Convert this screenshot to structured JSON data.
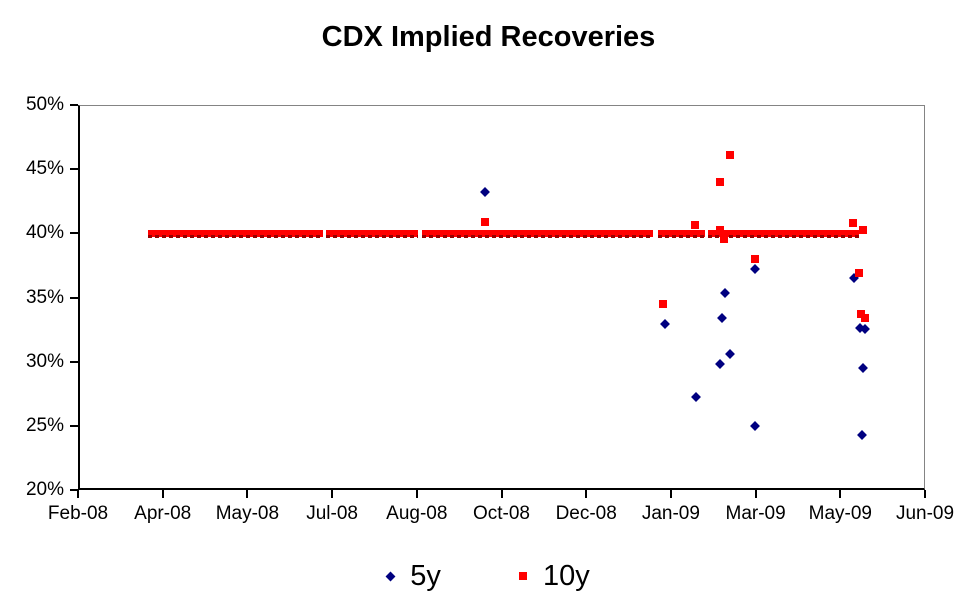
{
  "title": "CDX Implied Recoveries",
  "colors": {
    "series_5y": "#000080",
    "series_10y": "#FF0000",
    "band_dark_fleck": "#990000",
    "plot_border_gray": "#848484",
    "axis_black": "#000000",
    "background": "#FFFFFF"
  },
  "chart_data": {
    "type": "scatter",
    "title": "CDX Implied Recoveries",
    "grid": "off",
    "legend_position": "bottom-center",
    "x_axis": {
      "tick_labels": [
        "Feb-08",
        "Apr-08",
        "May-08",
        "Jul-08",
        "Aug-08",
        "Oct-08",
        "Dec-08",
        "Jan-09",
        "Mar-09",
        "May-09",
        "Jun-09"
      ],
      "range_note": "x values below are in tick-index units: 0 = Feb-08 tick, 10 = Jun-09 tick"
    },
    "y_axis": {
      "tick_labels": [
        "50%",
        "45%",
        "40%",
        "35%",
        "30%",
        "25%",
        "20%"
      ],
      "min": 20,
      "max": 50,
      "step": 5,
      "unit": "%"
    },
    "series": [
      {
        "name": "5y",
        "marker": "diamond",
        "color": "#000080",
        "points": [
          [
            4.78,
            43.3
          ],
          [
            6.91,
            33.0
          ],
          [
            7.27,
            27.3
          ],
          [
            7.56,
            29.9
          ],
          [
            7.58,
            33.5
          ],
          [
            7.61,
            35.4
          ],
          [
            7.67,
            30.7
          ],
          [
            7.97,
            37.3
          ],
          [
            7.97,
            25.1
          ],
          [
            9.14,
            36.6
          ],
          [
            9.21,
            32.7
          ],
          [
            9.23,
            24.4
          ],
          [
            9.24,
            29.6
          ],
          [
            9.27,
            32.6
          ]
        ]
      },
      {
        "name": "10y",
        "marker": "square",
        "color": "#FF0000",
        "points": [
          [
            4.78,
            41.0
          ],
          [
            6.88,
            34.6
          ],
          [
            7.26,
            40.7
          ],
          [
            7.56,
            44.1
          ],
          [
            7.56,
            40.3
          ],
          [
            7.6,
            39.6
          ],
          [
            7.67,
            46.2
          ],
          [
            7.97,
            38.1
          ],
          [
            9.13,
            40.9
          ],
          [
            9.2,
            37.0
          ],
          [
            9.22,
            33.8
          ],
          [
            9.24,
            40.3
          ],
          [
            9.27,
            33.5
          ]
        ]
      }
    ],
    "baseline_band": {
      "description": "dense run of overlapping 10y/5y markers pinned at 40% recovery",
      "y": 40,
      "color": "#FF0000",
      "segments": [
        [
          0.8,
          2.87
        ],
        [
          2.91,
          3.99
        ],
        [
          4.04,
          6.77
        ],
        [
          6.82,
          7.38
        ],
        [
          7.42,
          9.2
        ]
      ]
    }
  },
  "legend": {
    "items": [
      {
        "label": "5y",
        "marker": "diamond",
        "color": "#000080"
      },
      {
        "label": "10y",
        "marker": "square",
        "color": "#FF0000"
      }
    ]
  }
}
